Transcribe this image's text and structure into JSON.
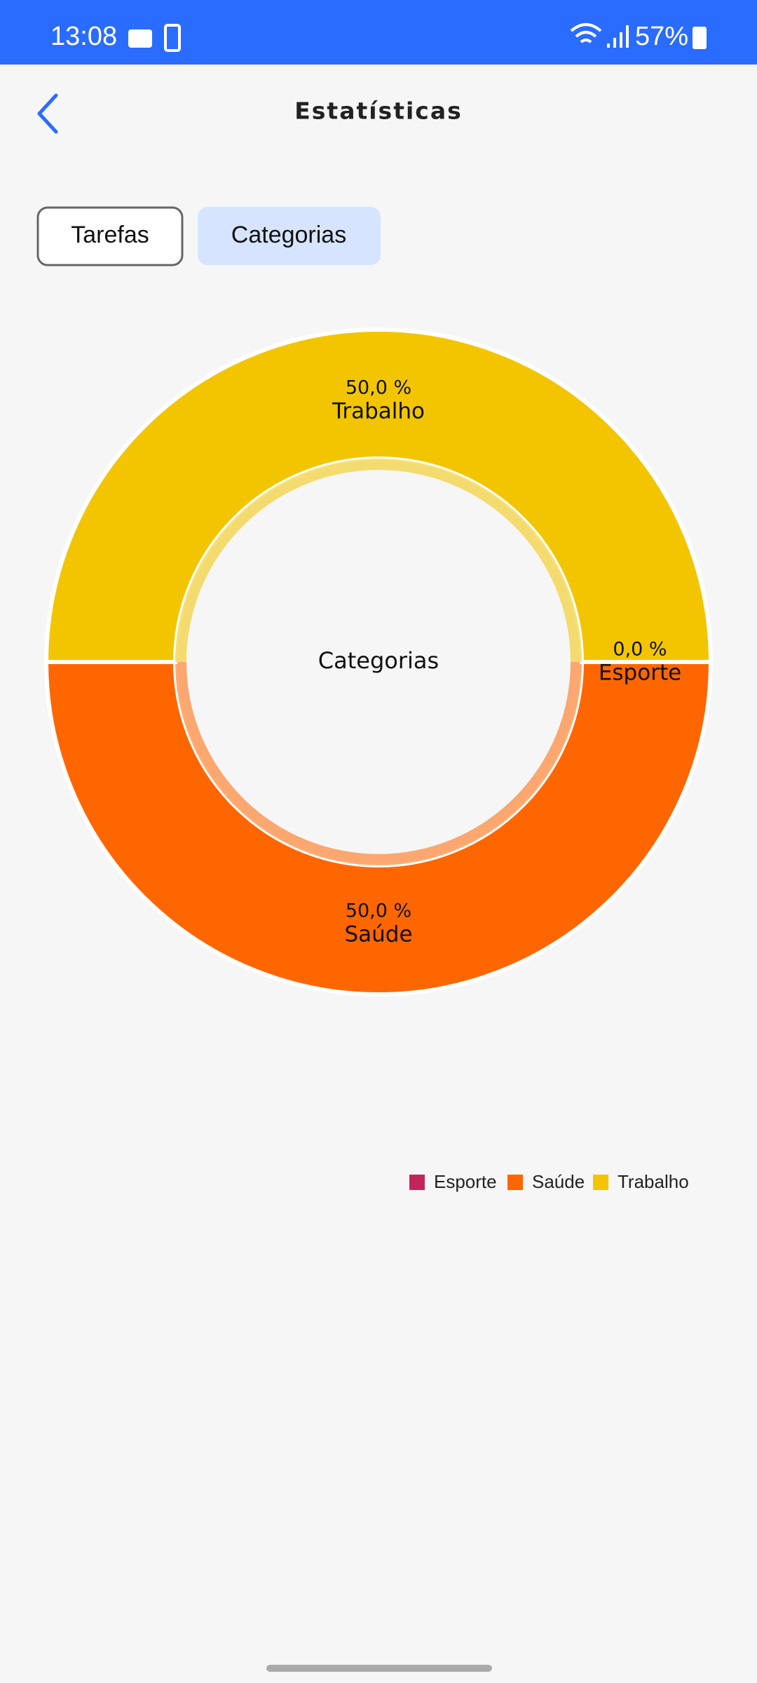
{
  "status_bar": {
    "time": "13:08",
    "battery": "57%"
  },
  "header": {
    "title": "Estatísticas"
  },
  "tabs": [
    "Tarefas",
    "Categorias"
  ],
  "chart_data": {
    "type": "donut",
    "center_label": "Categorias",
    "categories": [
      "Esporte",
      "Saúde",
      "Trabalho"
    ],
    "values": [
      0,
      50,
      50
    ],
    "value_labels": [
      "0,0 %",
      "50,0 %",
      "50,0 %"
    ],
    "colors": [
      "#c2255c",
      "#ff6600",
      "#f2c500"
    ]
  }
}
